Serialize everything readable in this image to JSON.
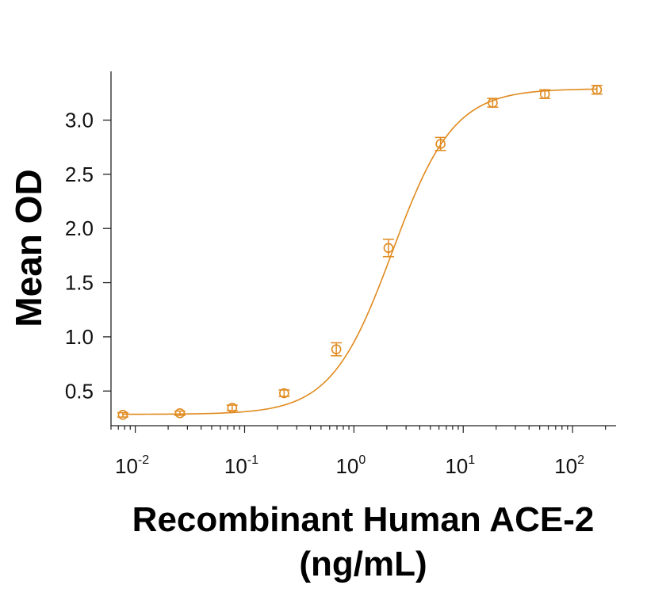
{
  "chart_data": {
    "type": "scatter",
    "xlabel_line1": "Recombinant Human ACE-2",
    "xlabel_line2": "(ng/mL)",
    "ylabel": "Mean OD",
    "x_scale": "log",
    "xlim": [
      0.006,
      250
    ],
    "ylim": [
      0.18,
      3.45
    ],
    "y_ticks": [
      0.5,
      1.0,
      1.5,
      2.0,
      2.5,
      3.0
    ],
    "y_tick_labels": [
      "0.5",
      "1.0",
      "1.5",
      "2.0",
      "2.5",
      "3.0"
    ],
    "x_tick_labels": [
      {
        "base": "10",
        "exp": "-2"
      },
      {
        "base": "10",
        "exp": "-1"
      },
      {
        "base": "10",
        "exp": "0"
      },
      {
        "base": "10",
        "exp": "1"
      },
      {
        "base": "10",
        "exp": "2"
      }
    ],
    "grid": false,
    "color": "#E08A1E",
    "points": [
      {
        "x": 0.0077,
        "y": 0.28,
        "err": 0.02
      },
      {
        "x": 0.0256,
        "y": 0.295,
        "err": 0.02
      },
      {
        "x": 0.077,
        "y": 0.345,
        "err": 0.025
      },
      {
        "x": 0.23,
        "y": 0.48,
        "err": 0.03
      },
      {
        "x": 0.69,
        "y": 0.885,
        "err": 0.06
      },
      {
        "x": 2.07,
        "y": 1.82,
        "err": 0.08
      },
      {
        "x": 6.2,
        "y": 2.78,
        "err": 0.06
      },
      {
        "x": 18.6,
        "y": 3.16,
        "err": 0.04
      },
      {
        "x": 55.8,
        "y": 3.24,
        "err": 0.04
      },
      {
        "x": 167,
        "y": 3.28,
        "err": 0.04
      }
    ],
    "fit": {
      "model": "4PL",
      "bottom": 0.285,
      "top": 3.29,
      "ec50": 2.25,
      "hill": 1.55
    }
  }
}
